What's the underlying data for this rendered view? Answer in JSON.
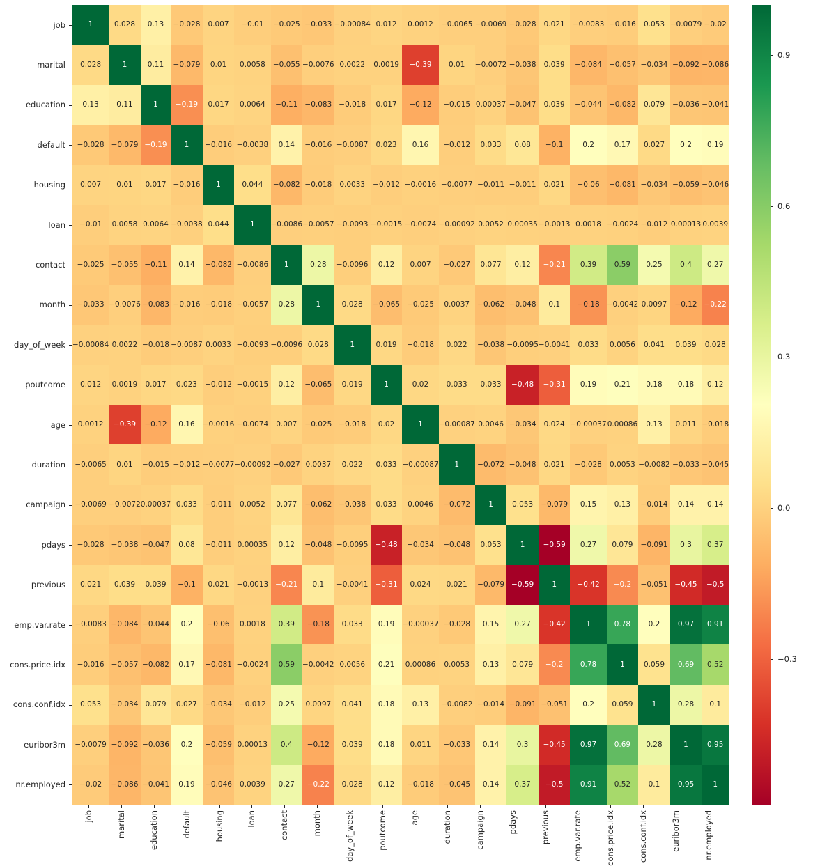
{
  "colors": {
    "background": "#ffffff",
    "annotation_dark": "#262626",
    "annotation_light": "#ffffff",
    "axis_text": "#262626"
  },
  "chart_data": {
    "type": "heatmap",
    "title": "",
    "xlabel": "",
    "ylabel": "",
    "legend_position": "colorbar-right",
    "grid": false,
    "categories": [
      "job",
      "marital",
      "education",
      "default",
      "housing",
      "loan",
      "contact",
      "month",
      "day_of_week",
      "poutcome",
      "age",
      "duration",
      "campaign",
      "pdays",
      "previous",
      "emp.var.rate",
      "cons.price.idx",
      "cons.conf.idx",
      "euribor3m",
      "nr.employed"
    ],
    "matrix": [
      [
        1,
        0.028,
        0.13,
        -0.028,
        0.007,
        -0.01,
        -0.025,
        -0.033,
        -0.00084,
        0.012,
        0.0012,
        -0.0065,
        -0.0069,
        -0.028,
        0.021,
        -0.0083,
        -0.016,
        0.053,
        -0.0079,
        -0.02
      ],
      [
        0.028,
        1,
        0.11,
        -0.079,
        0.01,
        0.0058,
        -0.055,
        -0.0076,
        0.0022,
        0.0019,
        -0.39,
        0.01,
        -0.0072,
        -0.038,
        0.039,
        -0.084,
        -0.057,
        -0.034,
        -0.092,
        -0.086
      ],
      [
        0.13,
        0.11,
        1,
        -0.19,
        0.017,
        0.0064,
        -0.11,
        -0.083,
        -0.018,
        0.017,
        -0.12,
        -0.015,
        0.00037,
        -0.047,
        0.039,
        -0.044,
        -0.082,
        0.079,
        -0.036,
        -0.041
      ],
      [
        -0.028,
        -0.079,
        -0.19,
        1,
        -0.016,
        -0.0038,
        0.14,
        -0.016,
        -0.0087,
        0.023,
        0.16,
        -0.012,
        0.033,
        0.08,
        -0.1,
        0.2,
        0.17,
        0.027,
        0.2,
        0.19
      ],
      [
        0.007,
        0.01,
        0.017,
        -0.016,
        1,
        0.044,
        -0.082,
        -0.018,
        0.0033,
        -0.012,
        -0.0016,
        -0.0077,
        -0.011,
        -0.011,
        0.021,
        -0.06,
        -0.081,
        -0.034,
        -0.059,
        -0.046
      ],
      [
        -0.01,
        0.0058,
        0.0064,
        -0.0038,
        0.044,
        1,
        -0.0086,
        -0.0057,
        -0.0093,
        -0.0015,
        -0.0074,
        -0.00092,
        0.0052,
        0.00035,
        -0.0013,
        0.0018,
        -0.0024,
        -0.012,
        0.00013,
        0.0039
      ],
      [
        -0.025,
        -0.055,
        -0.11,
        0.14,
        -0.082,
        -0.0086,
        1,
        0.28,
        -0.0096,
        0.12,
        0.007,
        -0.027,
        0.077,
        0.12,
        -0.21,
        0.39,
        0.59,
        0.25,
        0.4,
        0.27
      ],
      [
        -0.033,
        -0.0076,
        -0.083,
        -0.016,
        -0.018,
        -0.0057,
        0.28,
        1,
        0.028,
        -0.065,
        -0.025,
        0.0037,
        -0.062,
        -0.048,
        0.1,
        -0.18,
        -0.0042,
        0.0097,
        -0.12,
        -0.22
      ],
      [
        -0.00084,
        0.0022,
        -0.018,
        -0.0087,
        0.0033,
        -0.0093,
        -0.0096,
        0.028,
        1,
        0.019,
        -0.018,
        0.022,
        -0.038,
        -0.0095,
        -0.0041,
        0.033,
        0.0056,
        0.041,
        0.039,
        0.028
      ],
      [
        0.012,
        0.0019,
        0.017,
        0.023,
        -0.012,
        -0.0015,
        0.12,
        -0.065,
        0.019,
        1,
        0.02,
        0.033,
        0.033,
        -0.48,
        -0.31,
        0.19,
        0.21,
        0.18,
        0.18,
        0.12
      ],
      [
        0.0012,
        -0.39,
        -0.12,
        0.16,
        -0.0016,
        -0.0074,
        0.007,
        -0.025,
        -0.018,
        0.02,
        1,
        -0.00087,
        0.0046,
        -0.034,
        0.024,
        -0.00037,
        0.00086,
        0.13,
        0.011,
        -0.018
      ],
      [
        -0.0065,
        0.01,
        -0.015,
        -0.012,
        -0.0077,
        -0.00092,
        -0.027,
        0.0037,
        0.022,
        0.033,
        -0.00087,
        1,
        -0.072,
        -0.048,
        0.021,
        -0.028,
        0.0053,
        -0.0082,
        -0.033,
        -0.045
      ],
      [
        -0.0069,
        -0.0072,
        0.00037,
        0.033,
        -0.011,
        0.0052,
        0.077,
        -0.062,
        -0.038,
        0.033,
        0.0046,
        -0.072,
        1,
        0.053,
        -0.079,
        0.15,
        0.13,
        -0.014,
        0.14,
        0.14
      ],
      [
        -0.028,
        -0.038,
        -0.047,
        0.08,
        -0.011,
        0.00035,
        0.12,
        -0.048,
        -0.0095,
        -0.48,
        -0.034,
        -0.048,
        0.053,
        1,
        -0.59,
        0.27,
        0.079,
        -0.091,
        0.3,
        0.37
      ],
      [
        0.021,
        0.039,
        0.039,
        -0.1,
        0.021,
        -0.0013,
        -0.21,
        0.1,
        -0.0041,
        -0.31,
        0.024,
        0.021,
        -0.079,
        -0.59,
        1,
        -0.42,
        -0.2,
        -0.051,
        -0.45,
        -0.5
      ],
      [
        -0.0083,
        -0.084,
        -0.044,
        0.2,
        -0.06,
        0.0018,
        0.39,
        -0.18,
        0.033,
        0.19,
        -0.00037,
        -0.028,
        0.15,
        0.27,
        -0.42,
        1,
        0.78,
        0.2,
        0.97,
        0.91
      ],
      [
        -0.016,
        -0.057,
        -0.082,
        0.17,
        -0.081,
        -0.0024,
        0.59,
        -0.0042,
        0.0056,
        0.21,
        0.00086,
        0.0053,
        0.13,
        0.079,
        -0.2,
        0.78,
        1,
        0.059,
        0.69,
        0.52
      ],
      [
        0.053,
        -0.034,
        0.079,
        0.027,
        -0.034,
        -0.012,
        0.25,
        0.0097,
        0.041,
        0.18,
        0.13,
        -0.0082,
        -0.014,
        -0.091,
        -0.051,
        0.2,
        0.059,
        1,
        0.28,
        0.1
      ],
      [
        -0.0079,
        -0.092,
        -0.036,
        0.2,
        -0.059,
        0.00013,
        0.4,
        -0.12,
        0.039,
        0.18,
        0.011,
        -0.033,
        0.14,
        0.3,
        -0.45,
        0.97,
        0.69,
        0.28,
        1,
        0.95
      ],
      [
        -0.02,
        -0.086,
        -0.041,
        0.19,
        -0.046,
        0.0039,
        0.27,
        -0.22,
        0.028,
        0.12,
        -0.018,
        -0.045,
        0.14,
        0.37,
        -0.5,
        0.91,
        0.52,
        0.1,
        0.95,
        1
      ]
    ],
    "vmin": -0.59,
    "vmax": 1.0,
    "colormap": {
      "name": "RdYlGn",
      "stops": [
        "#a50026",
        "#d73027",
        "#f46d43",
        "#fdae61",
        "#fee08b",
        "#ffffbf",
        "#d9ef8b",
        "#a6d96a",
        "#66bd63",
        "#1a9850",
        "#006837"
      ]
    },
    "colorbar": {
      "tick_values": [
        0.9,
        0.6,
        0.3,
        0.0,
        -0.3
      ],
      "tick_labels": [
        "0.9",
        "0.6",
        "0.3",
        "0.0",
        "-0.3"
      ]
    }
  }
}
